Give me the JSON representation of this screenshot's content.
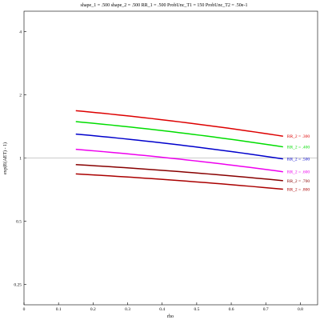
{
  "chart_data": {
    "type": "line",
    "title": "shape_1 = .500  shape_2 = .500  RR_1 = .500  ProbUnc_T1 = 150  ProbUnc_T2 = .50e-1",
    "xlabel": "rho",
    "ylabel": "exp(E(AET) - 1)",
    "x_log": false,
    "y_log": true,
    "xlim": [
      0,
      0.85
    ],
    "ylim": [
      0.2,
      5
    ],
    "x_ticks": [
      0,
      0.1,
      0.2,
      0.3,
      0.4,
      0.5,
      0.6,
      0.7,
      0.8
    ],
    "x_tick_labels": [
      "0",
      "0.1",
      "0.2",
      "0.3",
      "0.4",
      "0.5",
      "0.6",
      "0.7",
      "0.8"
    ],
    "y_ticks": [
      0.25,
      0.5,
      1,
      2,
      4
    ],
    "y_tick_labels": [
      "0.25",
      "0.5",
      "1",
      "2",
      "4"
    ],
    "reference_line_y": 1,
    "x": [
      0.15,
      0.75
    ],
    "series": [
      {
        "name": "RR_2 = .300",
        "color": "#dd0000",
        "values": [
          1.68,
          1.27
        ]
      },
      {
        "name": "RR_2 = .400",
        "color": "#00dd00",
        "values": [
          1.49,
          1.13
        ]
      },
      {
        "name": "RR_2 = .500",
        "color": "#0000cc",
        "values": [
          1.3,
          0.99
        ]
      },
      {
        "name": "RR_2 = .600",
        "color": "#ee00ee",
        "values": [
          1.1,
          0.86
        ]
      },
      {
        "name": "RR_2 = .700",
        "color": "#880000",
        "values": [
          0.93,
          0.78
        ]
      },
      {
        "name": "RR_2 = .800",
        "color": "#aa0000",
        "values": [
          0.84,
          0.71
        ]
      }
    ],
    "grid": false,
    "legend": "right-end-of-lines"
  }
}
